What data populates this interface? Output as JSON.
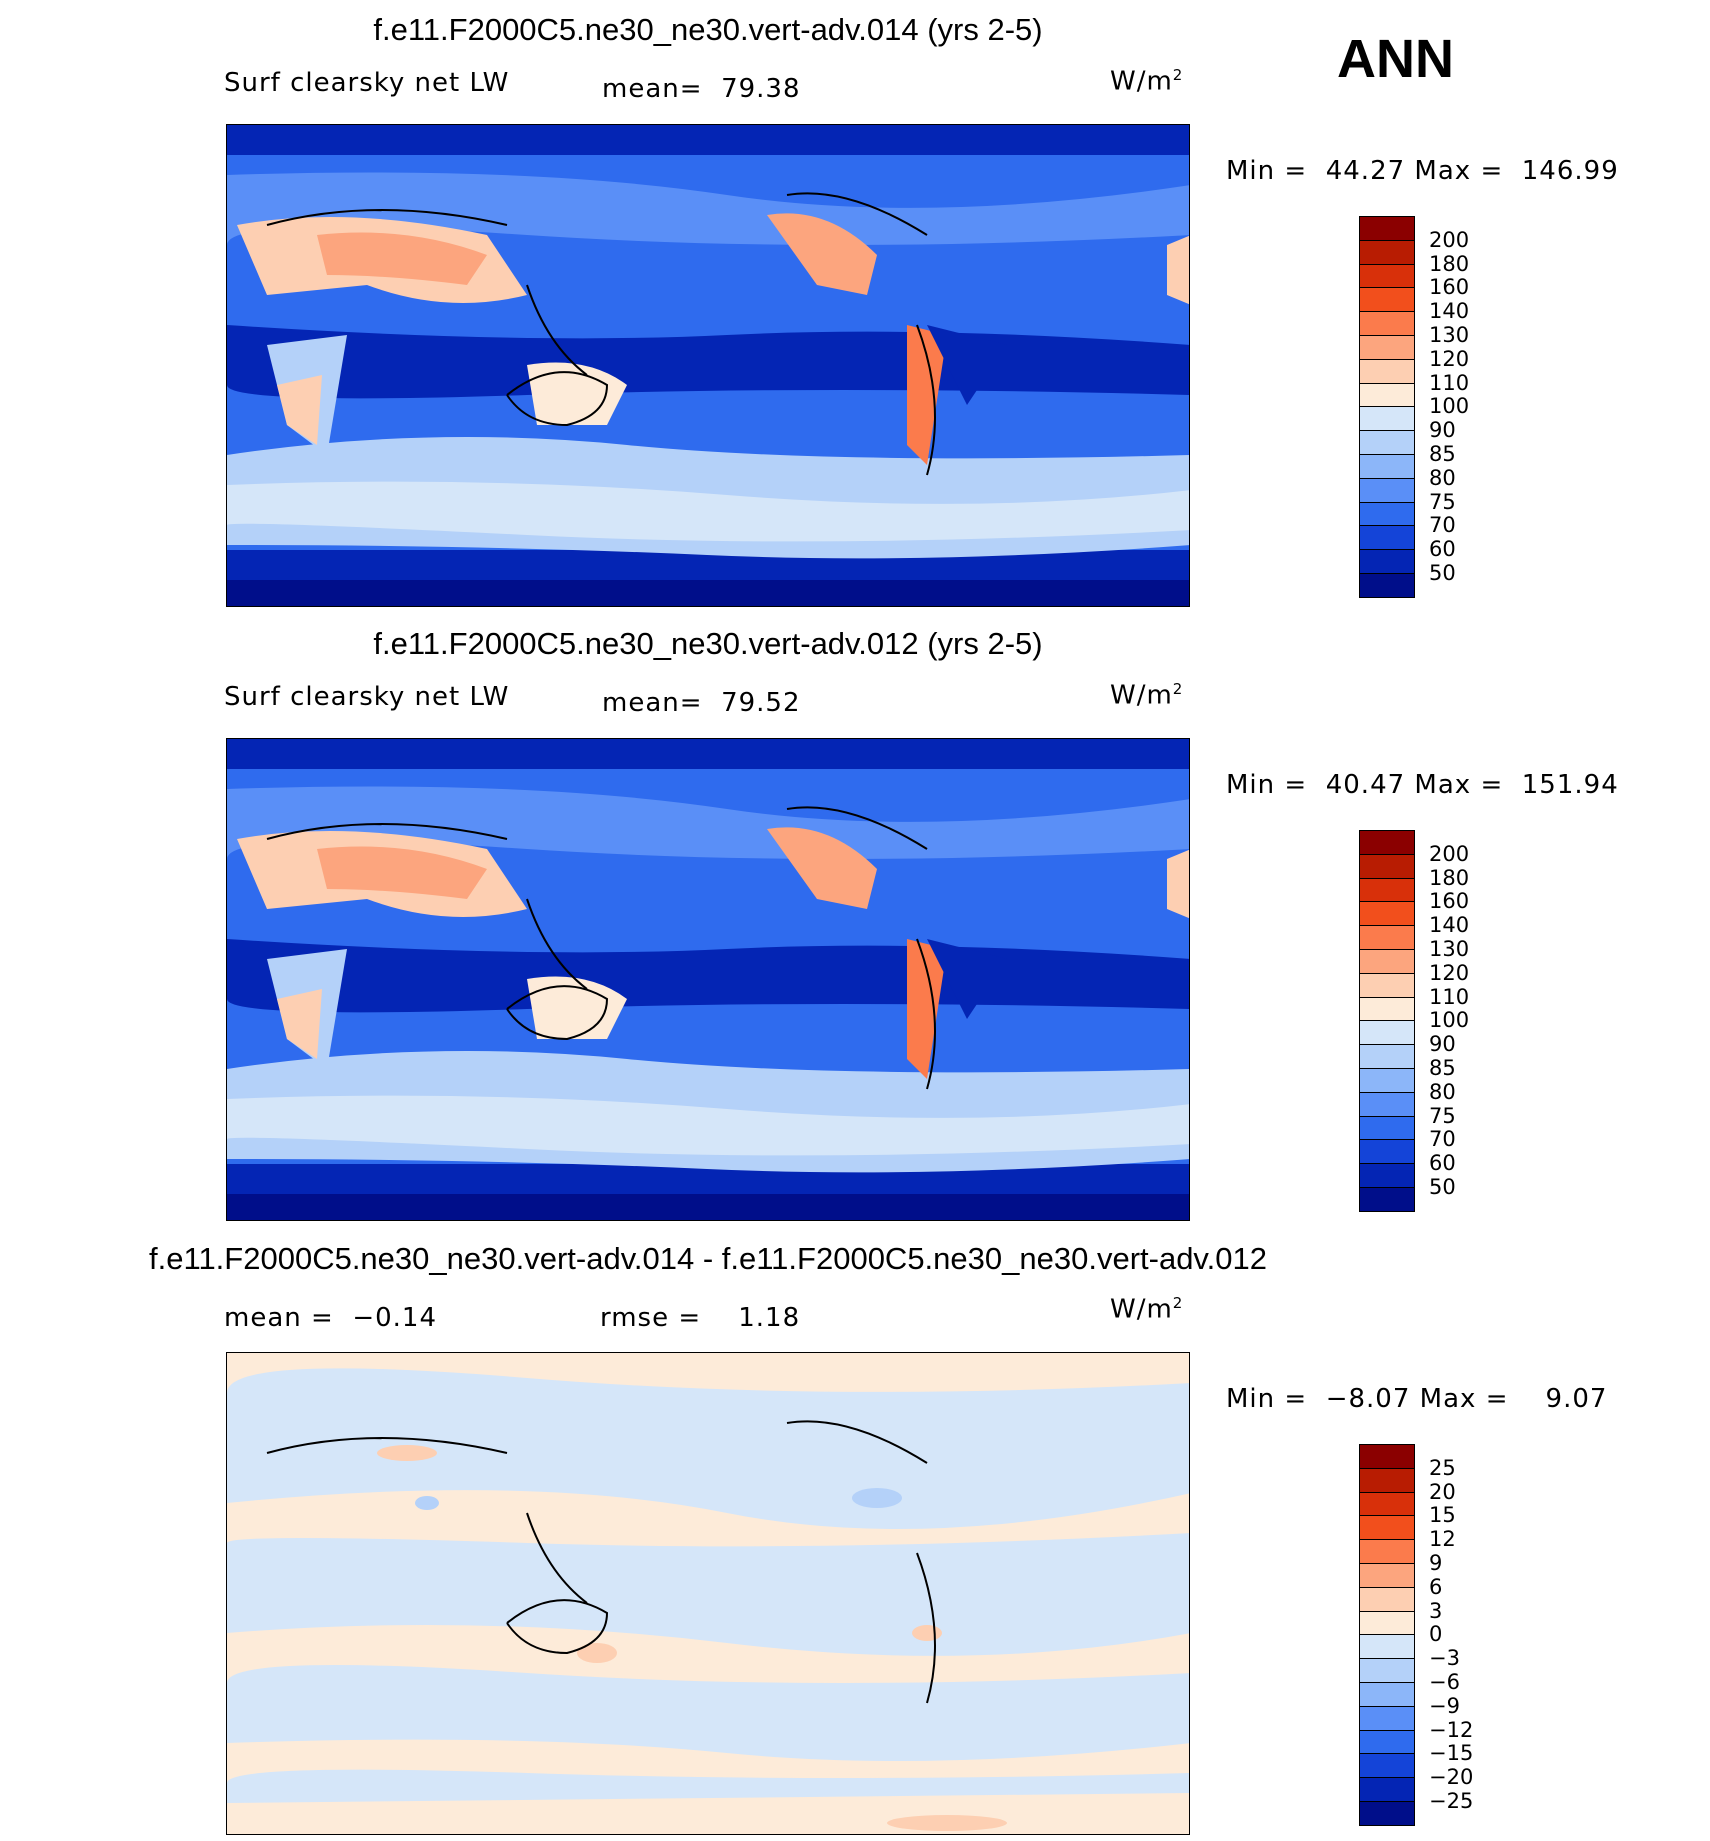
{
  "season": "ANN",
  "panels": [
    {
      "title": "f.e11.F2000C5.ne30_ne30.vert-adv.014 (yrs 2-5)",
      "variable": "Surf clearsky net LW",
      "stat_left": "mean=",
      "stat_left_value": "79.38",
      "stat_right": "",
      "stat_right_value": "",
      "units": "W/m",
      "units_sup": "2",
      "minmax": {
        "min_label": "Min =",
        "min": "44.27",
        "max_label": "Max =",
        "max": "146.99"
      },
      "colorbar_labels": [
        "200",
        "180",
        "160",
        "140",
        "130",
        "120",
        "110",
        "100",
        "90",
        "85",
        "80",
        "75",
        "70",
        "60",
        "50"
      ],
      "colorbar_colors": [
        "#8b0000",
        "#b81c02",
        "#d8300a",
        "#f24f1c",
        "#fb7b4c",
        "#fca57e",
        "#fdcfb2",
        "#fdebd9",
        "#d5e6f9",
        "#b4d1f9",
        "#8cb6f9",
        "#5a8ff7",
        "#2f6bee",
        "#1444d8",
        "#0425b4",
        "#000e8a"
      ],
      "map_type": "absolute"
    },
    {
      "title": "f.e11.F2000C5.ne30_ne30.vert-adv.012 (yrs 2-5)",
      "variable": "Surf clearsky net LW",
      "stat_left": "mean=",
      "stat_left_value": "79.52",
      "stat_right": "",
      "stat_right_value": "",
      "units": "W/m",
      "units_sup": "2",
      "minmax": {
        "min_label": "Min =",
        "min": "40.47",
        "max_label": "Max =",
        "max": "151.94"
      },
      "colorbar_labels": [
        "200",
        "180",
        "160",
        "140",
        "130",
        "120",
        "110",
        "100",
        "90",
        "85",
        "80",
        "75",
        "70",
        "60",
        "50"
      ],
      "colorbar_colors": [
        "#8b0000",
        "#b81c02",
        "#d8300a",
        "#f24f1c",
        "#fb7b4c",
        "#fca57e",
        "#fdcfb2",
        "#fdebd9",
        "#d5e6f9",
        "#b4d1f9",
        "#8cb6f9",
        "#5a8ff7",
        "#2f6bee",
        "#1444d8",
        "#0425b4",
        "#000e8a"
      ],
      "map_type": "absolute"
    },
    {
      "title": "f.e11.F2000C5.ne30_ne30.vert-adv.014 - f.e11.F2000C5.ne30_ne30.vert-adv.012",
      "variable": "",
      "stat_left": "mean =",
      "stat_left_value": "−0.14",
      "stat_right": "rmse =",
      "stat_right_value": "1.18",
      "units": "W/m",
      "units_sup": "2",
      "minmax": {
        "min_label": "Min =",
        "min": "−8.07",
        "max_label": "Max =",
        "max": "9.07"
      },
      "colorbar_labels": [
        "25",
        "20",
        "15",
        "12",
        "9",
        "6",
        "3",
        "0",
        "−3",
        "−6",
        "−9",
        "−12",
        "−15",
        "−20",
        "−25"
      ],
      "colorbar_colors": [
        "#8b0000",
        "#b81c02",
        "#d8300a",
        "#f24f1c",
        "#fb7b4c",
        "#fca57e",
        "#fdcfb2",
        "#fdebd9",
        "#d5e6f9",
        "#b4d1f9",
        "#8cb6f9",
        "#5a8ff7",
        "#2f6bee",
        "#1444d8",
        "#0425b4",
        "#000e8a"
      ],
      "map_type": "difference"
    }
  ]
}
